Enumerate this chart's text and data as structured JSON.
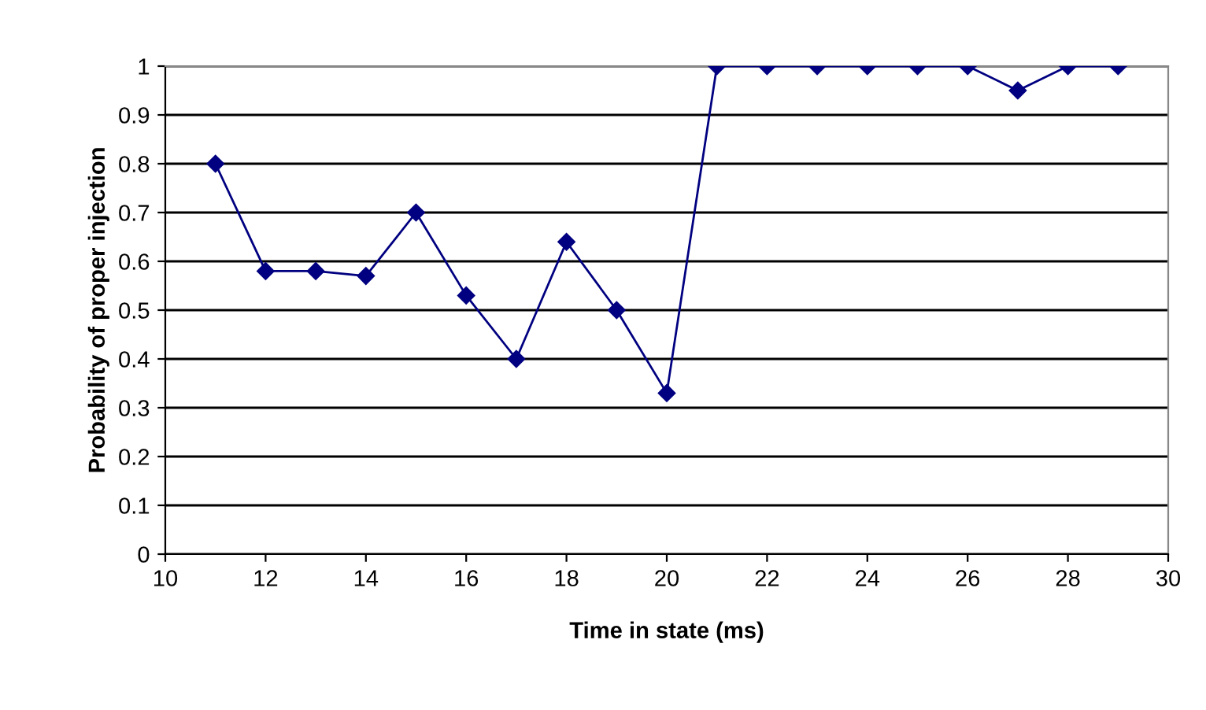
{
  "chart_data": {
    "type": "line",
    "xlabel": "Time in state (ms)",
    "ylabel": "Probability of proper injection",
    "x": [
      11,
      12,
      13,
      14,
      15,
      16,
      17,
      18,
      19,
      20,
      21,
      22,
      23,
      24,
      25,
      26,
      27,
      28,
      29
    ],
    "series": [
      {
        "color": "#000080",
        "values": [
          0.8,
          0.58,
          0.58,
          0.57,
          0.7,
          0.53,
          0.4,
          0.64,
          0.5,
          0.33,
          1,
          1,
          1,
          1,
          1,
          1,
          0.95,
          1,
          1
        ]
      }
    ],
    "xlim": [
      10,
      30
    ],
    "xticks": [
      10,
      12,
      14,
      16,
      18,
      20,
      22,
      24,
      26,
      28,
      30
    ],
    "ylim": [
      0,
      1
    ],
    "yticks": [
      0,
      0.1,
      0.2,
      0.3,
      0.4,
      0.5,
      0.6,
      0.7,
      0.8,
      0.9,
      1
    ],
    "grid": "y",
    "marker": "diamond",
    "line_style": "solid"
  }
}
